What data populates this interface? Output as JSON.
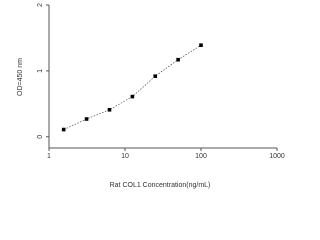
{
  "chart_data": {
    "type": "scatter-line",
    "x_label": "Rat COL1 Concentration(ng/mL)",
    "y_label": "OD=450 nm",
    "x": [
      1.56,
      3.12,
      6.25,
      12.5,
      25,
      50,
      100
    ],
    "values": [
      0.11,
      0.27,
      0.41,
      0.61,
      0.92,
      1.17,
      1.39
    ],
    "color": "#000000",
    "x_log": true,
    "xlim": [
      1,
      1000
    ],
    "xticks": [
      1,
      10,
      100,
      1000
    ],
    "ylim": [
      -0.17,
      2
    ],
    "yticks": [
      0,
      1,
      2
    ]
  }
}
